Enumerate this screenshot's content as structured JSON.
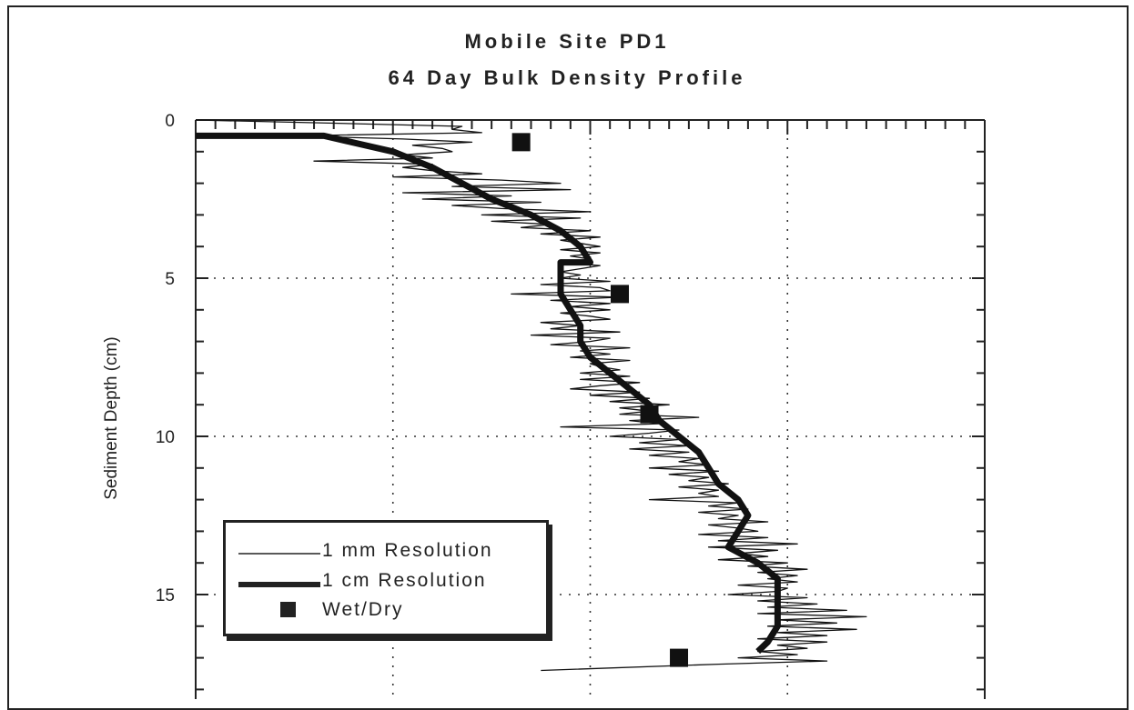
{
  "chart_data": {
    "type": "line",
    "title": "Mobile Site PD1",
    "subtitle": "64 Day Bulk Density Profile",
    "ylabel": "Sediment Depth (cm)",
    "xlabel": "",
    "y_inverted": true,
    "ylim": [
      0,
      18
    ],
    "y_ticks": [
      0,
      5,
      10,
      15
    ],
    "y_tick_labels": [
      "0",
      "5",
      "10",
      "15"
    ],
    "x_tick_labels": [],
    "xlim": [
      0,
      4
    ],
    "grid": true,
    "legend_position": "bottom-left",
    "series": [
      {
        "name": "1 mm Resolution",
        "style": "thin-line",
        "points": [
          [
            0.0,
            0.0
          ],
          [
            0.7,
            0.1
          ],
          [
            1.35,
            0.2
          ],
          [
            1.3,
            0.3
          ],
          [
            1.45,
            0.4
          ],
          [
            0.5,
            0.5
          ],
          [
            1.05,
            0.6
          ],
          [
            1.4,
            0.7
          ],
          [
            1.1,
            0.8
          ],
          [
            1.25,
            0.9
          ],
          [
            1.3,
            1.0
          ],
          [
            1.05,
            1.1
          ],
          [
            1.2,
            1.2
          ],
          [
            0.6,
            1.3
          ],
          [
            1.2,
            1.4
          ],
          [
            1.05,
            1.5
          ],
          [
            1.2,
            1.6
          ],
          [
            1.45,
            1.7
          ],
          [
            1.0,
            1.8
          ],
          [
            1.55,
            1.9
          ],
          [
            1.85,
            2.0
          ],
          [
            1.3,
            2.1
          ],
          [
            1.9,
            2.2
          ],
          [
            1.05,
            2.3
          ],
          [
            1.6,
            2.4
          ],
          [
            1.15,
            2.5
          ],
          [
            1.75,
            2.6
          ],
          [
            1.3,
            2.7
          ],
          [
            1.55,
            2.8
          ],
          [
            2.0,
            2.9
          ],
          [
            1.45,
            3.0
          ],
          [
            1.95,
            3.1
          ],
          [
            1.5,
            3.2
          ],
          [
            1.8,
            3.3
          ],
          [
            1.65,
            3.4
          ],
          [
            2.0,
            3.5
          ],
          [
            1.75,
            3.6
          ],
          [
            2.05,
            3.7
          ],
          [
            1.85,
            3.8
          ],
          [
            1.95,
            3.9
          ],
          [
            2.05,
            4.0
          ],
          [
            1.85,
            4.1
          ],
          [
            2.05,
            4.2
          ],
          [
            1.9,
            4.3
          ],
          [
            2.0,
            4.4
          ],
          [
            1.85,
            4.5
          ],
          [
            2.05,
            4.6
          ],
          [
            1.95,
            4.7
          ],
          [
            1.85,
            4.8
          ],
          [
            1.95,
            4.9
          ],
          [
            1.85,
            5.0
          ],
          [
            2.1,
            5.1
          ],
          [
            1.75,
            5.2
          ],
          [
            2.05,
            5.3
          ],
          [
            2.1,
            5.4
          ],
          [
            1.6,
            5.5
          ],
          [
            2.15,
            5.6
          ],
          [
            1.8,
            5.7
          ],
          [
            2.1,
            5.8
          ],
          [
            1.9,
            5.9
          ],
          [
            2.1,
            6.0
          ],
          [
            1.85,
            6.1
          ],
          [
            2.0,
            6.2
          ],
          [
            2.1,
            6.3
          ],
          [
            1.75,
            6.4
          ],
          [
            1.95,
            6.5
          ],
          [
            1.8,
            6.6
          ],
          [
            2.15,
            6.7
          ],
          [
            1.7,
            6.8
          ],
          [
            2.1,
            6.9
          ],
          [
            2.0,
            7.0
          ],
          [
            1.8,
            7.1
          ],
          [
            2.2,
            7.2
          ],
          [
            1.95,
            7.3
          ],
          [
            2.1,
            7.4
          ],
          [
            1.9,
            7.5
          ],
          [
            2.2,
            7.6
          ],
          [
            2.0,
            7.7
          ],
          [
            2.05,
            7.8
          ],
          [
            2.15,
            7.9
          ],
          [
            1.95,
            8.0
          ],
          [
            2.2,
            8.1
          ],
          [
            1.95,
            8.2
          ],
          [
            2.25,
            8.3
          ],
          [
            2.05,
            8.4
          ],
          [
            1.9,
            8.5
          ],
          [
            2.25,
            8.6
          ],
          [
            2.0,
            8.7
          ],
          [
            2.3,
            8.8
          ],
          [
            2.1,
            8.9
          ],
          [
            2.4,
            9.0
          ],
          [
            2.15,
            9.1
          ],
          [
            2.3,
            9.2
          ],
          [
            2.15,
            9.3
          ],
          [
            2.55,
            9.4
          ],
          [
            2.2,
            9.5
          ],
          [
            2.35,
            9.6
          ],
          [
            1.85,
            9.7
          ],
          [
            2.45,
            9.8
          ],
          [
            2.3,
            9.9
          ],
          [
            2.1,
            10.0
          ],
          [
            2.45,
            10.1
          ],
          [
            2.25,
            10.2
          ],
          [
            2.5,
            10.3
          ],
          [
            2.2,
            10.4
          ],
          [
            2.5,
            10.5
          ],
          [
            2.3,
            10.6
          ],
          [
            2.55,
            10.7
          ],
          [
            2.45,
            10.8
          ],
          [
            2.6,
            10.9
          ],
          [
            2.3,
            11.0
          ],
          [
            2.65,
            11.1
          ],
          [
            2.4,
            11.2
          ],
          [
            2.6,
            11.3
          ],
          [
            2.5,
            11.4
          ],
          [
            2.7,
            11.5
          ],
          [
            2.45,
            11.6
          ],
          [
            2.65,
            11.7
          ],
          [
            2.55,
            11.8
          ],
          [
            2.65,
            11.9
          ],
          [
            2.3,
            12.0
          ],
          [
            2.75,
            12.1
          ],
          [
            2.6,
            12.2
          ],
          [
            2.8,
            12.3
          ],
          [
            2.55,
            12.4
          ],
          [
            2.75,
            12.5
          ],
          [
            2.65,
            12.6
          ],
          [
            2.9,
            12.7
          ],
          [
            2.6,
            12.8
          ],
          [
            2.75,
            12.9
          ],
          [
            2.85,
            13.0
          ],
          [
            2.55,
            13.1
          ],
          [
            2.9,
            13.2
          ],
          [
            2.65,
            13.3
          ],
          [
            3.05,
            13.4
          ],
          [
            2.6,
            13.5
          ],
          [
            2.95,
            13.6
          ],
          [
            2.75,
            13.7
          ],
          [
            2.9,
            13.8
          ],
          [
            2.65,
            13.9
          ],
          [
            3.0,
            14.0
          ],
          [
            2.8,
            14.1
          ],
          [
            3.1,
            14.2
          ],
          [
            2.85,
            14.3
          ],
          [
            3.05,
            14.4
          ],
          [
            2.9,
            14.5
          ],
          [
            3.05,
            14.6
          ],
          [
            2.75,
            14.7
          ],
          [
            3.0,
            14.8
          ],
          [
            2.95,
            14.9
          ],
          [
            2.7,
            15.0
          ],
          [
            3.1,
            15.1
          ],
          [
            2.85,
            15.2
          ],
          [
            3.15,
            15.3
          ],
          [
            2.9,
            15.4
          ],
          [
            3.3,
            15.5
          ],
          [
            2.85,
            15.6
          ],
          [
            3.4,
            15.7
          ],
          [
            2.95,
            15.8
          ],
          [
            3.25,
            15.9
          ],
          [
            2.9,
            16.0
          ],
          [
            3.35,
            16.1
          ],
          [
            2.95,
            16.2
          ],
          [
            3.2,
            16.3
          ],
          [
            2.85,
            16.4
          ],
          [
            3.2,
            16.5
          ],
          [
            2.95,
            16.6
          ],
          [
            3.1,
            16.7
          ],
          [
            2.85,
            16.8
          ],
          [
            3.05,
            16.9
          ],
          [
            2.75,
            17.0
          ],
          [
            3.2,
            17.1
          ],
          [
            2.65,
            17.2
          ],
          [
            1.75,
            17.4
          ]
        ]
      },
      {
        "name": "1 cm Resolution",
        "style": "thick-line",
        "points": [
          [
            0.0,
            0.5
          ],
          [
            0.65,
            0.5
          ],
          [
            1.0,
            1.0
          ],
          [
            1.2,
            1.5
          ],
          [
            1.35,
            2.0
          ],
          [
            1.5,
            2.5
          ],
          [
            1.7,
            3.0
          ],
          [
            1.85,
            3.5
          ],
          [
            1.95,
            4.0
          ],
          [
            2.0,
            4.5
          ],
          [
            1.85,
            4.5
          ],
          [
            1.85,
            5.0
          ],
          [
            1.85,
            5.5
          ],
          [
            1.9,
            6.0
          ],
          [
            1.95,
            6.5
          ],
          [
            1.95,
            7.0
          ],
          [
            2.0,
            7.5
          ],
          [
            2.1,
            8.0
          ],
          [
            2.2,
            8.5
          ],
          [
            2.3,
            9.0
          ],
          [
            2.35,
            9.5
          ],
          [
            2.45,
            10.0
          ],
          [
            2.55,
            10.5
          ],
          [
            2.6,
            11.0
          ],
          [
            2.65,
            11.5
          ],
          [
            2.75,
            12.0
          ],
          [
            2.8,
            12.5
          ],
          [
            2.75,
            13.0
          ],
          [
            2.7,
            13.5
          ],
          [
            2.85,
            14.0
          ],
          [
            2.95,
            14.5
          ],
          [
            2.95,
            15.0
          ],
          [
            2.95,
            15.5
          ],
          [
            2.95,
            16.0
          ],
          [
            2.9,
            16.5
          ],
          [
            2.85,
            16.8
          ]
        ]
      },
      {
        "name": "Wet/Dry",
        "style": "square-marker",
        "points": [
          [
            1.65,
            0.7
          ],
          [
            2.15,
            5.5
          ],
          [
            2.3,
            9.3
          ],
          [
            2.45,
            17.0
          ]
        ]
      }
    ]
  },
  "legend": {
    "items": [
      "1 mm Resolution",
      "1 cm Resolution",
      "Wet/Dry"
    ]
  }
}
